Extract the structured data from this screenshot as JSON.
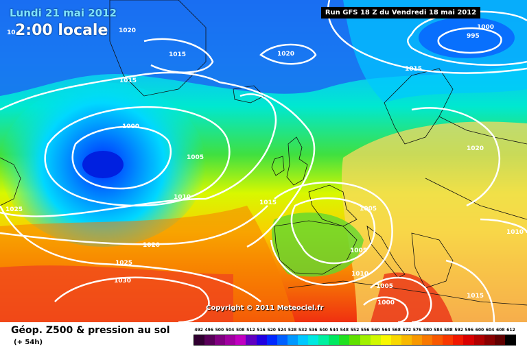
{
  "header": {
    "date": "Lundi 21 mai 2012",
    "local_time": "2:00 locale",
    "run_info": "Run GFS 18 Z du Vendredi 18 mai 2012"
  },
  "map": {
    "isobar_labels": [
      {
        "text": "1020",
        "k": "a"
      },
      {
        "text": "1015",
        "k": "b"
      },
      {
        "text": "1020",
        "k": "c"
      },
      {
        "text": "1000",
        "k": "d"
      },
      {
        "text": "995",
        "k": "e"
      },
      {
        "text": "1015",
        "k": "f"
      },
      {
        "text": "1015",
        "k": "g"
      },
      {
        "text": "1000",
        "k": "h"
      },
      {
        "text": "1005",
        "k": "i"
      },
      {
        "text": "1020",
        "k": "j"
      },
      {
        "text": "1010",
        "k": "k"
      },
      {
        "text": "1015",
        "k": "l"
      },
      {
        "text": "1025",
        "k": "m"
      },
      {
        "text": "1005",
        "k": "n"
      },
      {
        "text": "1020",
        "k": "o"
      },
      {
        "text": "1005",
        "k": "p"
      },
      {
        "text": "1010",
        "k": "q"
      },
      {
        "text": "1010",
        "k": "r"
      },
      {
        "text": "1025",
        "k": "s"
      },
      {
        "text": "1030",
        "k": "t"
      },
      {
        "text": "1005",
        "k": "u"
      },
      {
        "text": "1000",
        "k": "v"
      },
      {
        "text": "1015",
        "k": "w"
      },
      {
        "text": "10",
        "k": "x"
      }
    ],
    "copyright": "Copyright © 2011 Meteociel.fr"
  },
  "footer": {
    "title": "Géop. Z500 & pression au sol",
    "subtitle": "(+ 54h)"
  },
  "legend": {
    "ticks": [
      "492",
      "496",
      "500",
      "504",
      "508",
      "512",
      "516",
      "520",
      "524",
      "528",
      "532",
      "536",
      "540",
      "544",
      "548",
      "552",
      "556",
      "560",
      "564",
      "568",
      "572",
      "576",
      "580",
      "584",
      "588",
      "592",
      "596",
      "600",
      "604",
      "608",
      "612"
    ],
    "colors": [
      "#300030",
      "#580058",
      "#800080",
      "#a000a0",
      "#c000c0",
      "#6000c0",
      "#2000e0",
      "#0028ff",
      "#0060ff",
      "#0098ff",
      "#00c8ff",
      "#00e8e0",
      "#00f0a0",
      "#00e860",
      "#20e020",
      "#60e000",
      "#a0f000",
      "#d0f800",
      "#f8f800",
      "#f8d800",
      "#f8b800",
      "#f89800",
      "#f87800",
      "#f85800",
      "#f83800",
      "#f01800",
      "#d80000",
      "#b00000",
      "#880000",
      "#600000",
      "#000000"
    ]
  }
}
